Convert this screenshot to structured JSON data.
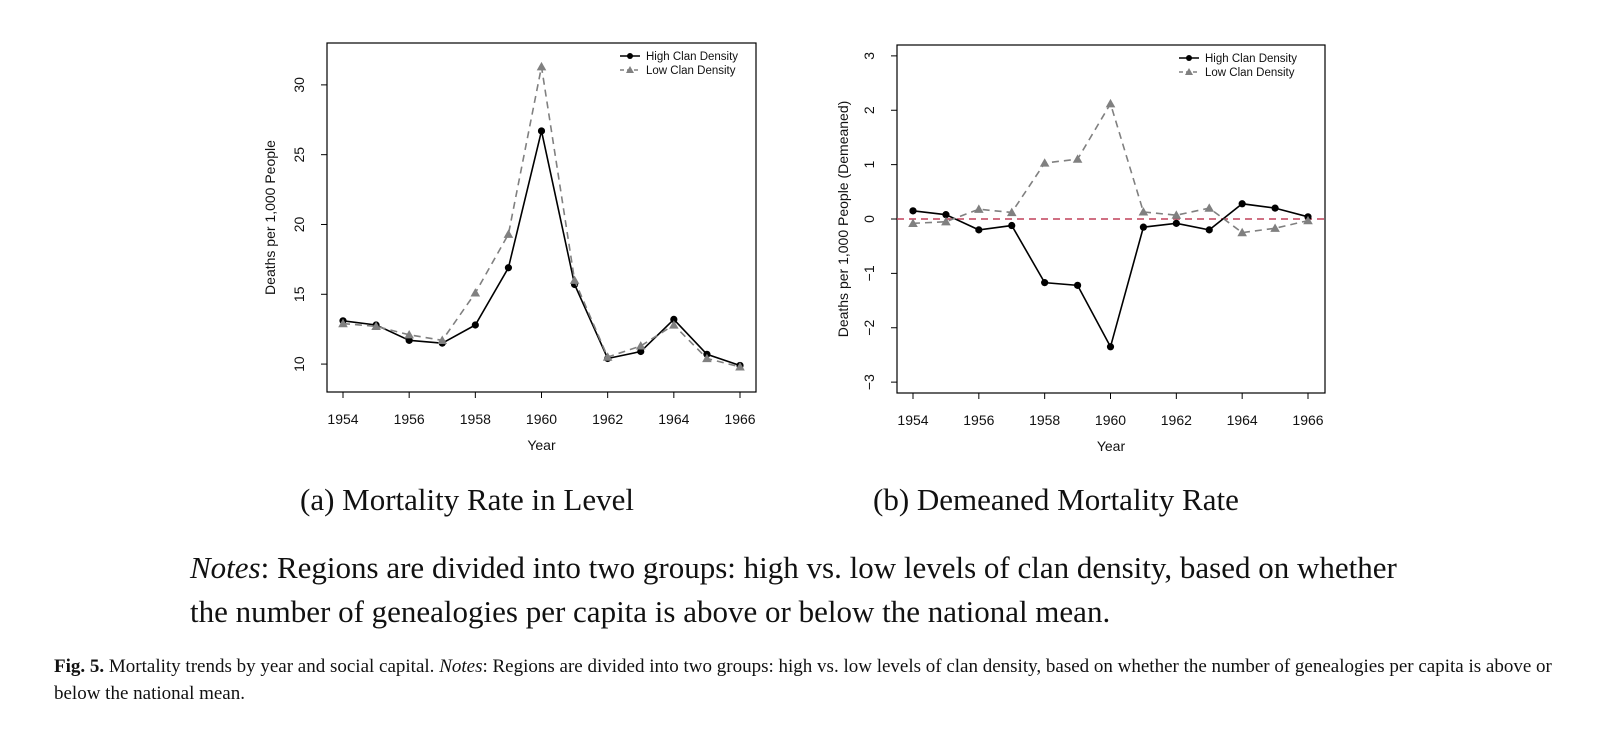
{
  "subcaptions": {
    "a": "(a) Mortality Rate in Level",
    "b": "(b) Demeaned Mortality Rate"
  },
  "notes": {
    "label": "Notes",
    "text": ": Regions are divided into two groups: high vs. low levels of clan density, based on whether the number of genealogies per capita is above or below the national mean."
  },
  "caption": {
    "label": "Fig. 5.",
    "text": " Mortality trends by year and social capital. ",
    "notes_label": "Notes",
    "notes_text": ": Regions are divided into two groups: high vs. low levels of clan density, based on whether the number of genealogies per capita is above or below the national mean."
  },
  "chart_data": [
    {
      "type": "line",
      "xlabel": "Year",
      "ylabel": "Deaths per 1,000 People",
      "xlim": [
        1954,
        1966
      ],
      "ylim": [
        8,
        33
      ],
      "x": [
        1954,
        1955,
        1956,
        1957,
        1958,
        1959,
        1960,
        1961,
        1962,
        1963,
        1964,
        1965,
        1966
      ],
      "xticks": [
        1954,
        1956,
        1958,
        1960,
        1962,
        1964,
        1966
      ],
      "yticks": [
        10,
        15,
        20,
        25,
        30
      ],
      "legend_position": "top-right",
      "series": [
        {
          "name": "High Clan Density",
          "color": "#000000",
          "line_style": "solid",
          "marker": "circle",
          "values": [
            13.1,
            12.8,
            11.7,
            11.5,
            12.8,
            16.9,
            26.7,
            15.7,
            10.4,
            10.9,
            13.2,
            10.7,
            9.9
          ]
        },
        {
          "name": "Low Clan Density",
          "color": "#808080",
          "line_style": "dashed",
          "marker": "triangle",
          "values": [
            12.9,
            12.7,
            12.1,
            11.7,
            15.1,
            19.3,
            31.3,
            16.0,
            10.5,
            11.3,
            12.8,
            10.4,
            9.8
          ]
        }
      ]
    },
    {
      "type": "line",
      "xlabel": "Year",
      "ylabel": "Deaths per 1,000 People (Demeaned)",
      "xlim": [
        1954,
        1966
      ],
      "ylim": [
        -3.2,
        3.2
      ],
      "x": [
        1954,
        1955,
        1956,
        1957,
        1958,
        1959,
        1960,
        1961,
        1962,
        1963,
        1964,
        1965,
        1966
      ],
      "xticks": [
        1954,
        1956,
        1958,
        1960,
        1962,
        1964,
        1966
      ],
      "yticks": [
        -3,
        -2,
        -1,
        0,
        1,
        2,
        3
      ],
      "legend_position": "top-right",
      "reference_line": {
        "y": 0,
        "color": "#c0405a",
        "line_style": "dashed"
      },
      "series": [
        {
          "name": "High Clan Density",
          "color": "#000000",
          "line_style": "solid",
          "marker": "circle",
          "values": [
            0.15,
            0.08,
            -0.2,
            -0.12,
            -1.17,
            -1.22,
            -2.35,
            -0.15,
            -0.08,
            -0.2,
            0.28,
            0.2,
            0.04
          ]
        },
        {
          "name": "Low Clan Density",
          "color": "#808080",
          "line_style": "dashed",
          "marker": "triangle",
          "values": [
            -0.08,
            -0.05,
            0.18,
            0.12,
            1.03,
            1.1,
            2.12,
            0.13,
            0.07,
            0.2,
            -0.25,
            -0.17,
            -0.03
          ]
        }
      ]
    }
  ]
}
